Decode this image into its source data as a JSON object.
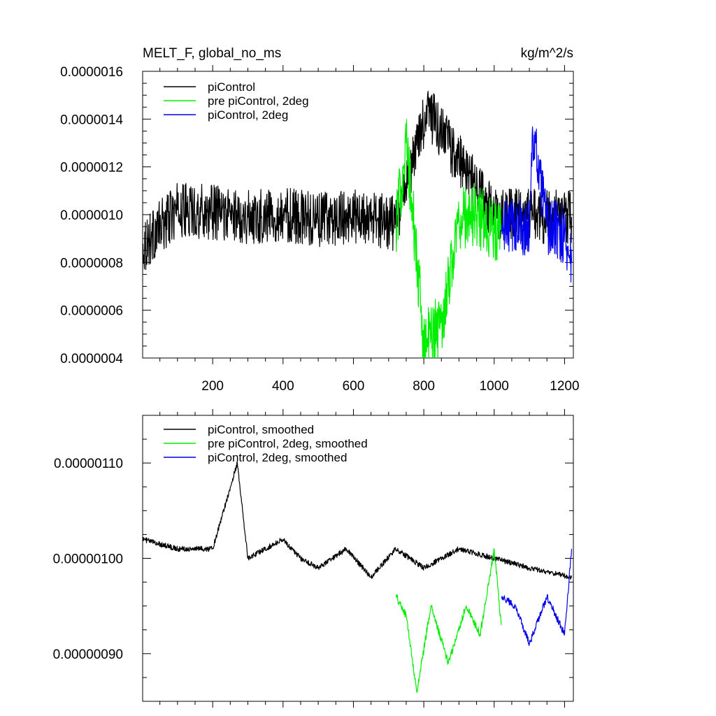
{
  "figure": {
    "title_left": "MELT_F, global_no_ms",
    "title_right": "kg/m^2/s"
  },
  "chart_data": [
    {
      "type": "line",
      "panel": "top",
      "title": "MELT_F, global_no_ms",
      "units": "kg/m^2/s",
      "xlim": [
        1,
        1225
      ],
      "ylim": [
        4e-07,
        1.6e-06
      ],
      "xticks": [
        200,
        400,
        600,
        800,
        1000,
        1200
      ],
      "xtick_labels": [
        "200",
        "400",
        "600",
        "800",
        "1000",
        "1200"
      ],
      "yticks": [
        4e-07,
        6e-07,
        8e-07,
        1e-06,
        1.2e-06,
        1.4e-06,
        1.6e-06
      ],
      "ytick_labels": [
        "0.0000004",
        "0.0000006",
        "0.0000008",
        "0.0000010",
        "0.0000012",
        "0.0000014",
        "0.0000016"
      ],
      "legend_position": "top-left",
      "series": [
        {
          "name": "piControl",
          "color": "#000000",
          "x": [
            1,
            100,
            200,
            300,
            400,
            500,
            600,
            700,
            720,
            808,
            1000,
            1220
          ],
          "values": [
            8.7e-07,
            1.02e-06,
            1.01e-06,
            9.9e-07,
            1e-06,
            9.8e-07,
            9.9e-07,
            9.7e-07,
            9.6e-07,
            1.44e-06,
            1e-06,
            9.9e-07
          ]
        },
        {
          "name": "pre piControl, 2deg",
          "color": "#00ee00",
          "x": [
            721,
            750,
            770,
            800,
            850,
            900,
            950,
            1000,
            1020
          ],
          "values": [
            9.5e-07,
            1.3e-06,
            9.8e-07,
            4.6e-07,
            5.5e-07,
            9.8e-07,
            1e-06,
            9.3e-07,
            9.4e-07
          ]
        },
        {
          "name": "piControl, 2deg",
          "color": "#0000ee",
          "x": [
            1021,
            1050,
            1100,
            1110,
            1150,
            1200,
            1220
          ],
          "values": [
            9.3e-07,
            9.6e-07,
            9.4e-07,
            1.33e-06,
            9.5e-07,
            9.2e-07,
            8e-07
          ]
        }
      ]
    },
    {
      "type": "line",
      "panel": "bottom",
      "title": "",
      "xlim": [
        1,
        1225
      ],
      "ylim": [
        8.5e-07,
        1.15e-06
      ],
      "xticks": [
        200,
        400,
        600,
        800,
        1000,
        1200
      ],
      "xtick_labels": [
        "",
        "",
        "",
        "",
        "",
        ""
      ],
      "yticks": [
        9e-07,
        1e-06,
        1.1e-06
      ],
      "ytick_labels": [
        "0.00000090",
        "0.00000100",
        "0.00000110"
      ],
      "legend_position": "top-left",
      "series": [
        {
          "name": "piControl, smoothed",
          "color": "#000000",
          "x": [
            1,
            100,
            200,
            270,
            300,
            400,
            450,
            500,
            580,
            650,
            720,
            800,
            900,
            1000,
            1100,
            1220
          ],
          "values": [
            1.02e-06,
            1.01e-06,
            1.01e-06,
            1.1e-06,
            1e-06,
            1.02e-06,
            1e-06,
            9.9e-07,
            1.01e-06,
            9.8e-07,
            1.01e-06,
            9.9e-07,
            1.01e-06,
            1e-06,
            9.9e-07,
            9.8e-07
          ]
        },
        {
          "name": "pre piControl, 2deg, smoothed",
          "color": "#00ee00",
          "x": [
            721,
            750,
            780,
            820,
            870,
            920,
            960,
            1000,
            1020
          ],
          "values": [
            9.6e-07,
            9.4e-07,
            8.6e-07,
            9.5e-07,
            8.9e-07,
            9.5e-07,
            9.2e-07,
            1.01e-06,
            9.3e-07
          ]
        },
        {
          "name": "piControl, 2deg, smoothed",
          "color": "#0000ee",
          "x": [
            1021,
            1060,
            1100,
            1150,
            1200,
            1220
          ],
          "values": [
            9.6e-07,
            9.5e-07,
            9.1e-07,
            9.6e-07,
            9.2e-07,
            1.01e-06
          ]
        }
      ]
    }
  ]
}
